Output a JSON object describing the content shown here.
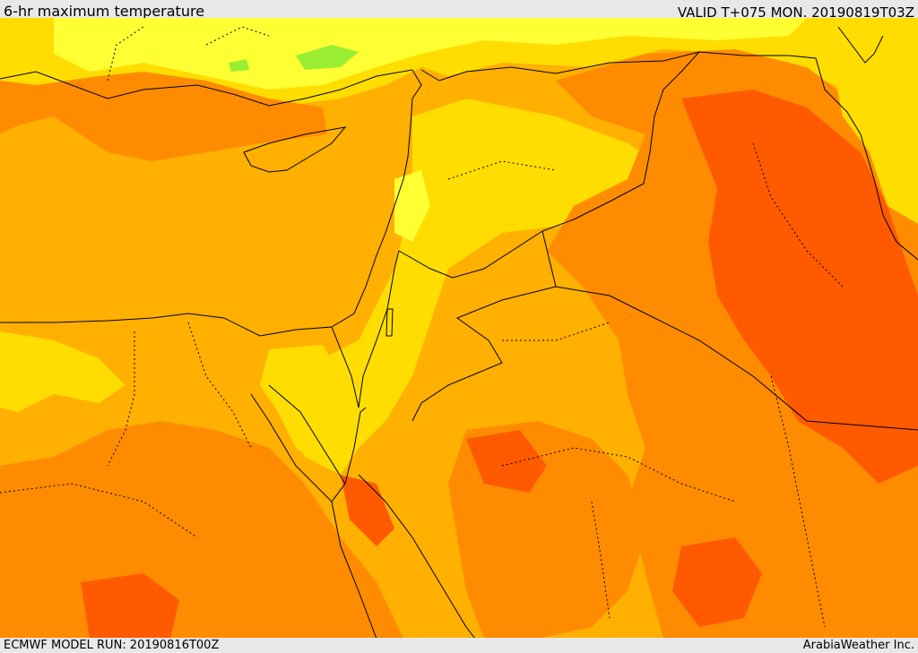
{
  "header": {
    "title": "6-hr maximum temperature",
    "valid": "VALID T+075 MON. 20190819T03Z"
  },
  "footer": {
    "model_run": "ECMWF MODEL RUN: 20190816T00Z",
    "credit": "ArabiaWeather Inc."
  },
  "palette": {
    "pale_yellow": "#ffff33",
    "yellow": "#ffdd00",
    "gold": "#ffb000",
    "orange": "#ff8c00",
    "dark_orange": "#ff5a00",
    "green": "#99ee33",
    "border": "#000000"
  }
}
